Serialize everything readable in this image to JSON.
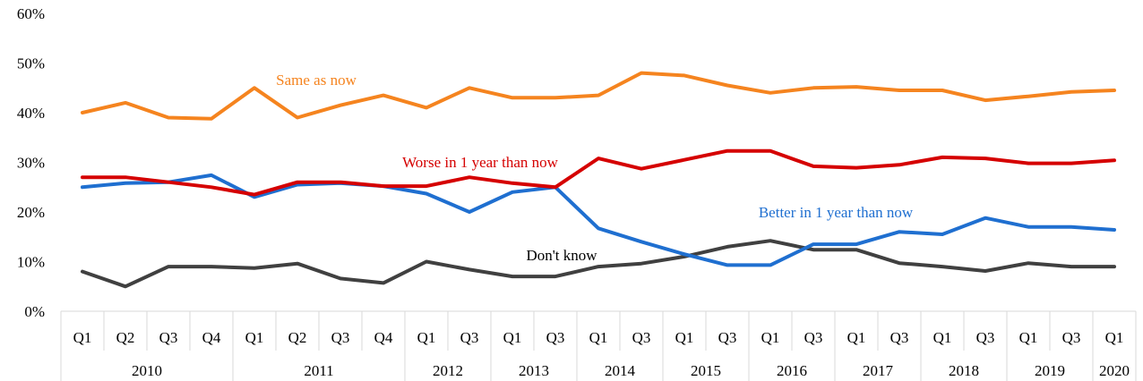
{
  "chart_data": {
    "type": "line",
    "title": "",
    "xlabel": "",
    "ylabel": "",
    "ylim": [
      0,
      60
    ],
    "yticks": [
      "0%",
      "10%",
      "20%",
      "30%",
      "40%",
      "50%",
      "60%"
    ],
    "grid": false,
    "quarters": [
      "Q1",
      "Q2",
      "Q3",
      "Q4",
      "Q1",
      "Q2",
      "Q3",
      "Q4",
      "Q1",
      "Q3",
      "Q1",
      "Q3",
      "Q1",
      "Q3",
      "Q1",
      "Q3",
      "Q1",
      "Q3",
      "Q1",
      "Q3",
      "Q1",
      "Q3",
      "Q1",
      "Q3",
      "Q1"
    ],
    "years": [
      {
        "label": "2010",
        "span": 4
      },
      {
        "label": "2011",
        "span": 4
      },
      {
        "label": "2012",
        "span": 2
      },
      {
        "label": "2013",
        "span": 2
      },
      {
        "label": "2014",
        "span": 2
      },
      {
        "label": "2015",
        "span": 2
      },
      {
        "label": "2016",
        "span": 2
      },
      {
        "label": "2017",
        "span": 2
      },
      {
        "label": "2018",
        "span": 2
      },
      {
        "label": "2019",
        "span": 2
      },
      {
        "label": "2020",
        "span": 1
      }
    ],
    "series": [
      {
        "name": "Same as now",
        "color": "#f5841f",
        "values": [
          40,
          42,
          39,
          38.8,
          45,
          39,
          41.5,
          43.5,
          41,
          45,
          43,
          43,
          43.5,
          48,
          47.5,
          45.5,
          44,
          45,
          45.2,
          44.5,
          44.5,
          42.5,
          43.3,
          44.2,
          44.5
        ]
      },
      {
        "name": "Worse in 1 year than now",
        "color": "#d50000",
        "values": [
          27,
          27,
          26,
          25,
          23.5,
          26,
          26,
          25.2,
          25.2,
          27,
          25.8,
          25,
          30.8,
          28.7,
          30.5,
          32.3,
          32.3,
          29.2,
          28.9,
          29.5,
          31,
          30.8,
          29.8,
          29.8,
          30.4
        ]
      },
      {
        "name": "Better in 1 year than now",
        "color": "#1f6fd0",
        "values": [
          25,
          25.8,
          26,
          27.4,
          23,
          25.5,
          25.8,
          25.2,
          23.7,
          20,
          24,
          25,
          16.7,
          14,
          11.5,
          9.3,
          9.3,
          13.5,
          13.5,
          16,
          15.5,
          18.8,
          17,
          17,
          16.4
        ]
      },
      {
        "name": "Don't know",
        "color": "#404040",
        "values": [
          8,
          5,
          9,
          9,
          8.7,
          9.6,
          6.6,
          5.7,
          10,
          8.4,
          7,
          7,
          9,
          9.6,
          11,
          13,
          14.2,
          12.4,
          12.4,
          9.7,
          9,
          8.1,
          9.7,
          9,
          9
        ]
      }
    ]
  }
}
